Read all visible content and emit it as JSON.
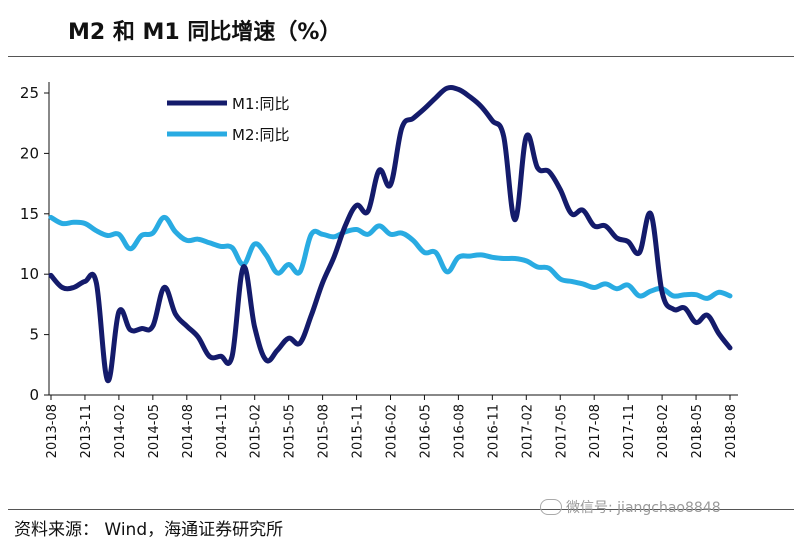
{
  "title": "M2 和 M1 同比增速（%）",
  "source": "资料来源：   Wind，海通证券研究所",
  "watermark": "微信号: jiangchao8848",
  "chart_data": {
    "type": "line",
    "title": "M2 和 M1 同比增速（%）",
    "xlabel": "",
    "ylabel": "",
    "ylim": [
      0,
      25
    ],
    "yticks": [
      0,
      5,
      10,
      15,
      20,
      25
    ],
    "grid": false,
    "legend_position": "top-left",
    "x_tick_labels": [
      "2013-08",
      "2013-11",
      "2014-02",
      "2014-05",
      "2014-08",
      "2014-11",
      "2015-02",
      "2015-05",
      "2015-08",
      "2015-11",
      "2016-02",
      "2016-05",
      "2016-08",
      "2016-11",
      "2017-02",
      "2017-05",
      "2017-08",
      "2017-11",
      "2018-02",
      "2018-05",
      "2018-08"
    ],
    "x": [
      "2013-08",
      "2013-09",
      "2013-10",
      "2013-11",
      "2013-12",
      "2014-01",
      "2014-02",
      "2014-03",
      "2014-04",
      "2014-05",
      "2014-06",
      "2014-07",
      "2014-08",
      "2014-09",
      "2014-10",
      "2014-11",
      "2014-12",
      "2015-01",
      "2015-02",
      "2015-03",
      "2015-04",
      "2015-05",
      "2015-06",
      "2015-07",
      "2015-08",
      "2015-09",
      "2015-10",
      "2015-11",
      "2015-12",
      "2016-01",
      "2016-02",
      "2016-03",
      "2016-04",
      "2016-05",
      "2016-06",
      "2016-07",
      "2016-08",
      "2016-09",
      "2016-10",
      "2016-11",
      "2016-12",
      "2017-01",
      "2017-02",
      "2017-03",
      "2017-04",
      "2017-05",
      "2017-06",
      "2017-07",
      "2017-08",
      "2017-09",
      "2017-10",
      "2017-11",
      "2017-12",
      "2018-01",
      "2018-02",
      "2018-03",
      "2018-04",
      "2018-05",
      "2018-06",
      "2018-07",
      "2018-08"
    ],
    "series": [
      {
        "name": "M1:同比",
        "color": "#141b6b",
        "line_width": 5,
        "values": [
          9.9,
          8.9,
          8.9,
          9.4,
          9.3,
          1.2,
          6.9,
          5.4,
          5.5,
          5.7,
          8.9,
          6.7,
          5.7,
          4.8,
          3.2,
          3.2,
          3.2,
          10.6,
          5.6,
          2.9,
          3.7,
          4.7,
          4.3,
          6.6,
          9.3,
          11.4,
          14.0,
          15.7,
          15.2,
          18.6,
          17.4,
          22.1,
          22.9,
          23.7,
          24.6,
          25.4,
          25.3,
          24.7,
          23.9,
          22.7,
          21.4,
          14.5,
          21.4,
          18.8,
          18.5,
          17.0,
          15.0,
          15.3,
          14.0,
          14.0,
          13.0,
          12.7,
          11.8,
          15.0,
          8.5,
          7.1,
          7.2,
          6.0,
          6.6,
          5.1,
          3.9
        ]
      },
      {
        "name": "M2:同比",
        "color": "#29abe2",
        "line_width": 5,
        "values": [
          14.7,
          14.2,
          14.3,
          14.2,
          13.6,
          13.2,
          13.3,
          12.1,
          13.2,
          13.4,
          14.7,
          13.5,
          12.8,
          12.9,
          12.6,
          12.3,
          12.2,
          10.8,
          12.5,
          11.6,
          10.1,
          10.8,
          10.2,
          13.3,
          13.3,
          13.1,
          13.5,
          13.7,
          13.3,
          14.0,
          13.3,
          13.4,
          12.8,
          11.8,
          11.8,
          10.2,
          11.4,
          11.5,
          11.6,
          11.4,
          11.3,
          11.3,
          11.1,
          10.6,
          10.5,
          9.6,
          9.4,
          9.2,
          8.9,
          9.2,
          8.8,
          9.1,
          8.2,
          8.6,
          8.8,
          8.2,
          8.3,
          8.3,
          8.0,
          8.5,
          8.2
        ]
      }
    ]
  }
}
